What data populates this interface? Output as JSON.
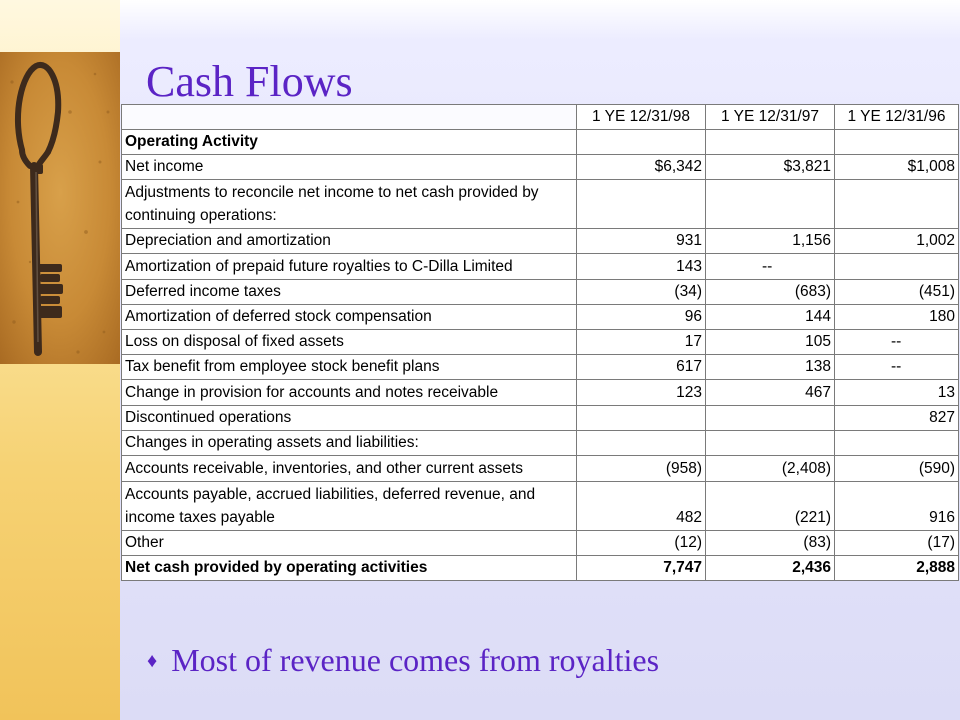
{
  "slide": {
    "title": "Cash Flows",
    "bullet": "Most of revenue comes from royalties",
    "colors": {
      "title": "#5b24c5",
      "left_band": "#f6d274"
    }
  },
  "key_image": {
    "icon": "antique-key-photo"
  },
  "table": {
    "columns": [
      "",
      "1 YE 12/31/98",
      "1 YE 12/31/97",
      "1 YE 12/31/96"
    ],
    "rows": [
      {
        "label": "Operating Activity",
        "values": [
          "",
          "",
          ""
        ],
        "bold": true
      },
      {
        "label": "Net income",
        "values": [
          "$6,342",
          "$3,821",
          "$1,008"
        ]
      },
      {
        "label": "Adjustments to reconcile net income to net cash provided by continuing operations:",
        "values": [
          "",
          "",
          ""
        ]
      },
      {
        "label": "Depreciation and amortization",
        "values": [
          "931",
          "1,156",
          "1,002"
        ]
      },
      {
        "label": "Amortization of prepaid future royalties to C-Dilla Limited",
        "values": [
          "143",
          "--",
          ""
        ]
      },
      {
        "label": "Deferred income taxes",
        "values": [
          "(34)",
          "(683)",
          "(451)"
        ]
      },
      {
        "label": "Amortization of deferred stock compensation",
        "values": [
          "96",
          "144",
          "180"
        ]
      },
      {
        "label": "Loss on disposal of fixed assets",
        "values": [
          "17",
          "105",
          "--"
        ]
      },
      {
        "label": "Tax benefit from employee stock benefit plans",
        "values": [
          "617",
          "138",
          "--"
        ]
      },
      {
        "label": "Change in provision for accounts and notes receivable",
        "values": [
          "123",
          "467",
          "13"
        ]
      },
      {
        "label": "Discontinued operations",
        "values": [
          "",
          "",
          "827"
        ]
      },
      {
        "label": "Changes in operating assets and liabilities:",
        "values": [
          "",
          "",
          ""
        ]
      },
      {
        "label": "Accounts receivable, inventories, and other current assets",
        "values": [
          "(958)",
          "(2,408)",
          "(590)"
        ]
      },
      {
        "label": "Accounts payable, accrued liabilities, deferred revenue, and income taxes payable",
        "values": [
          "482",
          "(221)",
          "916"
        ]
      },
      {
        "label": "Other",
        "values": [
          "(12)",
          "(83)",
          "(17)"
        ]
      },
      {
        "label": "Net cash provided by operating activities",
        "values": [
          "7,747",
          "2,436",
          "2,888"
        ],
        "bold": true
      }
    ]
  }
}
